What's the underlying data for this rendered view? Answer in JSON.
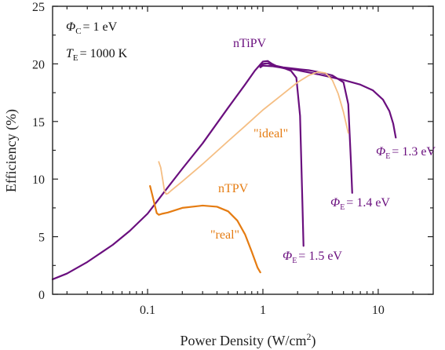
{
  "chart_data": {
    "type": "line",
    "title": "",
    "xlabel": "Power Density (W/cm²)",
    "ylabel": "Efficiency (%)",
    "x_scale": "log",
    "xlim": [
      0.015,
      30
    ],
    "ylim": [
      0,
      25
    ],
    "x_ticks": [
      0.1,
      1,
      10
    ],
    "x_tick_labels": [
      "0.1",
      "1",
      "10"
    ],
    "y_ticks": [
      0,
      5,
      10,
      15,
      20,
      25
    ],
    "y_tick_labels": [
      "0",
      "5",
      "10",
      "15",
      "20",
      "25"
    ],
    "grid": false,
    "colors": {
      "purple": "#6a0f7e",
      "orange": "#e57c12",
      "light_orange": "#f5be83"
    },
    "series": [
      {
        "color": "#6a0f7e",
        "x": [
          0.015,
          0.02,
          0.03,
          0.05,
          0.07,
          0.1,
          0.14,
          0.2,
          0.3,
          0.5,
          0.7,
          0.85,
          0.95,
          1.0,
          1.1,
          1.2,
          1.35,
          1.55,
          1.75,
          1.95,
          2.1,
          2.2,
          2.25
        ],
        "y": [
          1.3,
          1.8,
          2.8,
          4.3,
          5.5,
          7.0,
          8.9,
          10.9,
          13.1,
          16.2,
          18.2,
          19.4,
          19.95,
          20.2,
          20.25,
          20.0,
          19.75,
          19.6,
          19.4,
          18.8,
          15.5,
          8.0,
          4.2
        ]
      },
      {
        "color": "#6a0f7e",
        "x": [
          0.95,
          1.0,
          1.1,
          1.2,
          1.5,
          2.0,
          2.5,
          3.0,
          4.0,
          5.0,
          5.5,
          5.8,
          5.95
        ],
        "y": [
          19.8,
          20.0,
          20.05,
          19.9,
          19.7,
          19.55,
          19.45,
          19.3,
          19.0,
          18.4,
          16.5,
          11.5,
          8.8
        ]
      },
      {
        "color": "#6a0f7e",
        "x": [
          0.95,
          1.0,
          1.2,
          1.5,
          2.0,
          3.0,
          5.0,
          7.0,
          9.0,
          11.0,
          12.5,
          13.5,
          14.2
        ],
        "y": [
          19.7,
          19.85,
          19.8,
          19.65,
          19.45,
          19.1,
          18.6,
          18.2,
          17.7,
          16.9,
          15.9,
          14.8,
          13.6
        ]
      },
      {
        "color": "#e57c12",
        "x": [
          0.105,
          0.11,
          0.115,
          0.12,
          0.125,
          0.135,
          0.15,
          0.2,
          0.3,
          0.4,
          0.5,
          0.6,
          0.7,
          0.8,
          0.9,
          0.95
        ],
        "y": [
          9.4,
          8.6,
          7.8,
          7.05,
          6.9,
          7.0,
          7.1,
          7.5,
          7.7,
          7.6,
          7.2,
          6.4,
          5.2,
          3.7,
          2.3,
          1.9
        ]
      },
      {
        "color": "#f5be83",
        "x": [
          0.125,
          0.13,
          0.135,
          0.14,
          0.145,
          0.15,
          0.16,
          0.2,
          0.3,
          0.5,
          0.7,
          1.0,
          1.5,
          2.0,
          2.5,
          3.0,
          3.5,
          4.0,
          4.5,
          5.0,
          5.5
        ],
        "y": [
          11.5,
          11.0,
          10.0,
          9.0,
          8.7,
          8.75,
          9.0,
          9.8,
          11.3,
          13.3,
          14.6,
          16.0,
          17.4,
          18.4,
          19.0,
          19.3,
          19.2,
          18.6,
          17.4,
          15.8,
          14.0
        ]
      }
    ],
    "annotations": {
      "phi_c": {
        "symbol": "Φ",
        "subscript": "C",
        "text": "= 1 eV"
      },
      "t_e": {
        "symbol": "T",
        "subscript": "E",
        "text": "= 1000 K"
      },
      "ntipv": "nTiPV",
      "ntpv": "nTPV",
      "ideal": "\"ideal\"",
      "real": "\"real\"",
      "phi_e_13": {
        "symbol": "Φ",
        "subscript": "E",
        "text": "= 1.3 eV"
      },
      "phi_e_14": {
        "symbol": "Φ",
        "subscript": "E",
        "text": "= 1.4 eV"
      },
      "phi_e_15": {
        "symbol": "Φ",
        "subscript": "E",
        "text": "= 1.5 eV"
      }
    }
  }
}
